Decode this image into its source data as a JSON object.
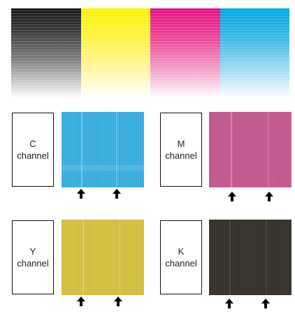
{
  "strip": [
    {
      "name": "black-gradient",
      "top": "#1a1a1a"
    },
    {
      "name": "yellow-gradient",
      "top": "#fff200"
    },
    {
      "name": "magenta-gradient",
      "top": "#e6117f"
    },
    {
      "name": "cyan-gradient",
      "top": "#00a6e0"
    }
  ],
  "panels": {
    "c": {
      "letter": "C",
      "word": "channel",
      "color": "#3bb2e4"
    },
    "m": {
      "letter": "M",
      "word": "channel",
      "color": "#c75b93"
    },
    "y": {
      "letter": "Y",
      "word": "channel",
      "color": "#d8c443"
    },
    "k": {
      "letter": "K",
      "word": "channel",
      "color": "#37322b"
    }
  },
  "icons": {
    "arrow": "up-arrow-icon"
  }
}
